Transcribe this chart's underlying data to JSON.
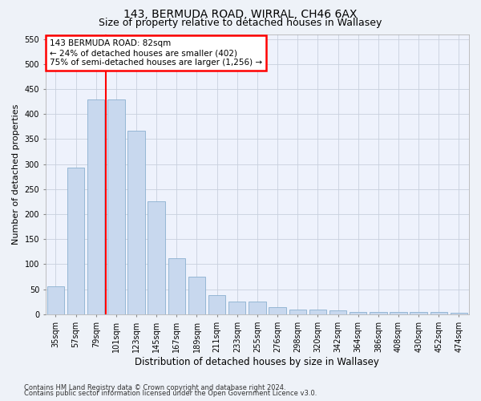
{
  "title1": "143, BERMUDA ROAD, WIRRAL, CH46 6AX",
  "title2": "Size of property relative to detached houses in Wallasey",
  "xlabel": "Distribution of detached houses by size in Wallasey",
  "ylabel": "Number of detached properties",
  "categories": [
    "35sqm",
    "57sqm",
    "79sqm",
    "101sqm",
    "123sqm",
    "145sqm",
    "167sqm",
    "189sqm",
    "211sqm",
    "233sqm",
    "255sqm",
    "276sqm",
    "298sqm",
    "320sqm",
    "342sqm",
    "364sqm",
    "386sqm",
    "408sqm",
    "430sqm",
    "452sqm",
    "474sqm"
  ],
  "values": [
    55,
    293,
    430,
    430,
    367,
    225,
    112,
    75,
    38,
    26,
    26,
    14,
    10,
    9,
    8,
    5,
    5,
    4,
    4,
    4,
    3
  ],
  "bar_color": "#c8d8ee",
  "bar_edgecolor": "#8ab0d0",
  "redline_index": 2,
  "annotation_line1": "143 BERMUDA ROAD: 82sqm",
  "annotation_line2": "← 24% of detached houses are smaller (402)",
  "annotation_line3": "75% of semi-detached houses are larger (1,256) →",
  "annotation_box_color": "white",
  "annotation_box_edgecolor": "red",
  "ylim": [
    0,
    560
  ],
  "yticks": [
    0,
    50,
    100,
    150,
    200,
    250,
    300,
    350,
    400,
    450,
    500,
    550
  ],
  "footer1": "Contains HM Land Registry data © Crown copyright and database right 2024.",
  "footer2": "Contains public sector information licensed under the Open Government Licence v3.0.",
  "bg_color": "#eef2f8",
  "plot_bg_color": "#eef2fc",
  "grid_color": "#c8d0de",
  "title1_fontsize": 10,
  "title2_fontsize": 9,
  "tick_fontsize": 7,
  "ylabel_fontsize": 8,
  "xlabel_fontsize": 8.5,
  "annotation_fontsize": 7.5,
  "footer_fontsize": 6
}
